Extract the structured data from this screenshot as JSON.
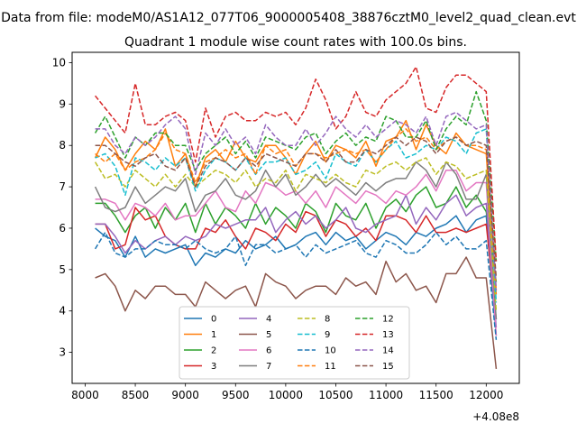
{
  "figure": {
    "suptitle": "Data from file: modeM0/AS1A12_077T06_9000005408_38876cztM0_level2_quad_clean.evt",
    "title": "Quadrant 1 module wise count rates with 100.0s bins.",
    "x_offset_label": "+4.08e8"
  },
  "chart_data": {
    "type": "line",
    "title": "Quadrant 1 module wise count rates with 100.0s bins.",
    "xlabel": "",
    "ylabel": "",
    "x_offset": 408000000,
    "xlim": [
      7870,
      12330
    ],
    "ylim": [
      2.25,
      10.25
    ],
    "xticks": [
      8000,
      8500,
      9000,
      9500,
      10000,
      10500,
      11000,
      11500,
      12000
    ],
    "yticks": [
      3,
      4,
      5,
      6,
      7,
      8,
      9,
      10
    ],
    "x": [
      8100,
      8200,
      8300,
      8400,
      8500,
      8600,
      8700,
      8800,
      8900,
      9000,
      9100,
      9200,
      9300,
      9400,
      9500,
      9600,
      9700,
      9800,
      9900,
      10000,
      10100,
      10200,
      10300,
      10400,
      10500,
      10600,
      10700,
      10800,
      10900,
      11000,
      11100,
      11200,
      11300,
      11400,
      11500,
      11600,
      11700,
      11800,
      11900,
      12000,
      12100
    ],
    "legend": {
      "position": "lower center",
      "ncol": 4
    },
    "grid": false,
    "series": [
      {
        "name": "0",
        "color": "#1f77b4",
        "style": "solid",
        "values": [
          6.0,
          5.8,
          5.7,
          5.3,
          5.8,
          5.3,
          5.5,
          5.4,
          5.5,
          5.6,
          5.1,
          5.4,
          5.3,
          5.5,
          5.4,
          5.7,
          5.5,
          5.6,
          5.8,
          5.5,
          5.6,
          5.8,
          5.9,
          5.6,
          5.9,
          5.7,
          5.8,
          5.5,
          5.7,
          5.9,
          5.8,
          5.6,
          5.9,
          5.8,
          6.0,
          6.1,
          6.3,
          5.9,
          6.2,
          6.3,
          3.4
        ]
      },
      {
        "name": "1",
        "color": "#ff7f0e",
        "style": "solid",
        "values": [
          7.7,
          8.2,
          7.9,
          7.4,
          7.8,
          8.1,
          7.9,
          8.4,
          7.5,
          7.8,
          7.0,
          7.7,
          7.9,
          7.6,
          8.1,
          7.7,
          7.6,
          8.0,
          8.0,
          7.7,
          7.3,
          7.8,
          8.1,
          7.6,
          8.0,
          7.9,
          7.7,
          8.1,
          7.5,
          8.1,
          8.2,
          8.6,
          7.9,
          8.5,
          8.0,
          7.8,
          8.3,
          8.0,
          7.9,
          7.8,
          4.4
        ]
      },
      {
        "name": "2",
        "color": "#2ca02c",
        "style": "solid",
        "values": [
          6.6,
          6.6,
          6.3,
          5.9,
          6.3,
          6.5,
          6.0,
          6.5,
          6.2,
          6.6,
          5.9,
          6.6,
          6.1,
          6.5,
          6.3,
          6.0,
          6.6,
          6.1,
          6.5,
          6.3,
          6.0,
          6.6,
          6.4,
          5.9,
          6.6,
          6.3,
          6.2,
          6.6,
          6.0,
          6.5,
          6.7,
          6.4,
          6.8,
          7.0,
          6.5,
          6.6,
          7.0,
          6.5,
          6.8,
          6.4,
          4.7
        ]
      },
      {
        "name": "3",
        "color": "#d62728",
        "style": "solid",
        "values": [
          6.1,
          6.1,
          5.5,
          5.6,
          6.5,
          6.2,
          6.3,
          5.8,
          5.6,
          5.5,
          5.5,
          6.0,
          5.9,
          6.2,
          5.8,
          5.5,
          6.0,
          5.9,
          5.7,
          6.1,
          5.9,
          6.4,
          6.3,
          5.8,
          6.2,
          6.1,
          5.8,
          6.0,
          5.7,
          6.3,
          6.3,
          6.2,
          5.9,
          6.3,
          5.9,
          5.9,
          6.0,
          5.9,
          6.0,
          6.1,
          3.8
        ]
      },
      {
        "name": "4",
        "color": "#9467bd",
        "style": "solid",
        "values": [
          6.1,
          6.1,
          5.8,
          5.4,
          5.7,
          5.5,
          5.7,
          5.8,
          5.6,
          5.8,
          5.7,
          5.8,
          6.1,
          6.0,
          6.1,
          6.2,
          6.2,
          6.5,
          5.9,
          6.2,
          6.4,
          6.1,
          6.3,
          6.0,
          6.2,
          6.5,
          6.0,
          5.9,
          6.1,
          6.2,
          6.3,
          6.8,
          6.1,
          6.5,
          6.2,
          6.6,
          6.8,
          6.3,
          6.5,
          6.6,
          3.6
        ]
      },
      {
        "name": "5",
        "color": "#8c564b",
        "style": "solid",
        "values": [
          4.8,
          4.9,
          4.6,
          4.0,
          4.5,
          4.3,
          4.6,
          4.6,
          4.4,
          4.4,
          4.1,
          4.7,
          4.5,
          4.3,
          4.5,
          4.6,
          4.1,
          4.9,
          4.7,
          4.6,
          4.3,
          4.5,
          4.6,
          4.6,
          4.4,
          4.8,
          4.6,
          4.7,
          4.4,
          5.2,
          4.7,
          4.9,
          4.5,
          4.6,
          4.2,
          4.9,
          4.9,
          5.3,
          4.8,
          4.8,
          2.6
        ]
      },
      {
        "name": "6",
        "color": "#e377c2",
        "style": "solid",
        "values": [
          6.7,
          6.7,
          6.6,
          6.2,
          6.6,
          6.5,
          6.3,
          6.6,
          6.2,
          6.3,
          6.3,
          6.6,
          6.9,
          6.5,
          6.4,
          6.9,
          6.6,
          7.1,
          7.0,
          6.8,
          6.9,
          6.6,
          6.9,
          6.5,
          7.0,
          6.8,
          6.6,
          6.9,
          6.8,
          6.6,
          6.9,
          6.8,
          7.0,
          7.3,
          6.9,
          7.4,
          7.4,
          6.9,
          7.1,
          7.1,
          3.4
        ]
      },
      {
        "name": "7",
        "color": "#7f7f7f",
        "style": "solid",
        "values": [
          7.0,
          6.5,
          6.4,
          6.5,
          7.0,
          6.6,
          6.8,
          7.0,
          6.9,
          7.2,
          6.4,
          6.8,
          6.9,
          7.2,
          6.8,
          6.7,
          6.9,
          7.4,
          7.0,
          7.3,
          6.8,
          7.0,
          7.3,
          7.0,
          7.2,
          7.0,
          6.8,
          7.1,
          6.9,
          7.1,
          7.2,
          7.2,
          7.6,
          7.4,
          7.0,
          7.6,
          7.3,
          6.7,
          6.7,
          7.3,
          3.8
        ]
      },
      {
        "name": "8",
        "color": "#bcbd22",
        "style": "dashed",
        "values": [
          7.6,
          7.2,
          7.3,
          7.0,
          7.4,
          7.2,
          7.0,
          7.3,
          7.0,
          7.3,
          7.0,
          7.2,
          7.4,
          7.3,
          7.1,
          7.4,
          7.0,
          7.2,
          7.1,
          7.4,
          6.9,
          7.3,
          7.2,
          7.1,
          7.3,
          7.1,
          7.0,
          7.4,
          7.3,
          7.5,
          7.6,
          7.4,
          7.6,
          7.7,
          7.3,
          7.6,
          7.5,
          7.2,
          7.3,
          7.4,
          4.0
        ]
      },
      {
        "name": "9",
        "color": "#17becf",
        "style": "dashed",
        "values": [
          7.7,
          7.8,
          7.5,
          6.8,
          7.7,
          7.6,
          7.4,
          7.7,
          7.5,
          7.7,
          6.9,
          7.4,
          7.7,
          7.6,
          7.4,
          7.7,
          7.3,
          7.6,
          7.6,
          7.7,
          7.3,
          7.4,
          7.6,
          7.2,
          7.8,
          7.6,
          7.5,
          7.9,
          7.6,
          7.9,
          8.1,
          7.7,
          7.8,
          8.0,
          7.9,
          8.2,
          8.1,
          7.8,
          8.3,
          8.4,
          4.2
        ]
      },
      {
        "name": "10",
        "color": "#1f77b4",
        "style": "dashed",
        "values": [
          5.5,
          5.9,
          5.4,
          5.3,
          5.5,
          5.5,
          5.7,
          5.6,
          5.6,
          5.5,
          5.7,
          5.5,
          5.4,
          5.5,
          5.8,
          5.1,
          5.6,
          5.6,
          5.4,
          5.5,
          5.6,
          5.3,
          5.6,
          5.4,
          5.5,
          5.6,
          5.7,
          5.4,
          5.3,
          5.7,
          5.6,
          5.4,
          5.4,
          5.6,
          5.9,
          5.6,
          5.8,
          5.5,
          5.5,
          5.7,
          3.3
        ]
      },
      {
        "name": "11",
        "color": "#ff7f0e",
        "style": "dashed",
        "values": [
          7.8,
          7.6,
          7.8,
          7.4,
          7.6,
          7.7,
          7.9,
          8.3,
          7.9,
          7.8,
          7.1,
          7.6,
          7.7,
          7.9,
          7.7,
          7.8,
          7.3,
          8.0,
          7.8,
          7.9,
          7.5,
          7.8,
          7.8,
          7.7,
          7.8,
          7.9,
          7.8,
          7.9,
          7.6,
          7.9,
          8.2,
          8.4,
          8.1,
          8.2,
          7.9,
          8.1,
          8.2,
          8.0,
          8.0,
          7.9,
          4.5
        ]
      },
      {
        "name": "12",
        "color": "#2ca02c",
        "style": "dashed",
        "values": [
          8.3,
          8.7,
          8.2,
          7.7,
          8.2,
          8.0,
          8.3,
          8.3,
          8.0,
          8.0,
          7.4,
          7.8,
          8.0,
          8.2,
          7.8,
          8.1,
          7.7,
          8.2,
          8.1,
          8.0,
          7.9,
          8.2,
          8.3,
          7.8,
          8.1,
          8.3,
          8.0,
          8.2,
          8.1,
          8.7,
          8.6,
          8.2,
          8.2,
          8.6,
          7.9,
          8.4,
          8.7,
          8.5,
          9.3,
          8.6,
          5.2
        ]
      },
      {
        "name": "13",
        "color": "#d62728",
        "style": "dashed",
        "values": [
          9.2,
          8.9,
          8.6,
          8.3,
          9.5,
          8.5,
          8.5,
          8.7,
          8.8,
          8.6,
          7.6,
          8.9,
          8.2,
          8.7,
          8.8,
          8.6,
          8.6,
          8.8,
          8.7,
          8.8,
          8.5,
          8.9,
          9.6,
          9.1,
          8.4,
          8.7,
          9.3,
          8.8,
          8.7,
          9.1,
          9.3,
          9.5,
          9.9,
          8.9,
          8.8,
          9.4,
          9.7,
          9.7,
          9.5,
          9.3,
          5.2
        ]
      },
      {
        "name": "14",
        "color": "#9467bd",
        "style": "dashed",
        "values": [
          8.4,
          8.4,
          8.0,
          7.8,
          8.2,
          8.0,
          8.2,
          8.5,
          8.7,
          8.4,
          7.3,
          8.3,
          8.0,
          8.4,
          8.0,
          8.2,
          7.8,
          8.5,
          8.2,
          8.0,
          8.0,
          8.4,
          8.0,
          8.3,
          8.7,
          8.4,
          8.2,
          8.5,
          8.2,
          8.4,
          8.6,
          8.5,
          8.3,
          8.7,
          8.0,
          8.7,
          8.8,
          8.6,
          8.4,
          8.5,
          4.5
        ]
      },
      {
        "name": "15",
        "color": "#8c564b",
        "style": "dashed",
        "values": [
          8.0,
          8.0,
          7.8,
          7.6,
          7.5,
          7.7,
          7.8,
          7.5,
          7.4,
          7.7,
          7.0,
          7.5,
          7.7,
          7.6,
          7.4,
          7.7,
          7.5,
          7.8,
          7.7,
          7.6,
          7.5,
          7.8,
          7.8,
          7.6,
          7.9,
          7.6,
          7.6,
          7.9,
          7.8,
          8.0,
          8.2,
          8.0,
          8.2,
          8.1,
          7.8,
          8.1,
          8.2,
          8.0,
          8.1,
          8.0,
          4.8
        ]
      }
    ]
  }
}
